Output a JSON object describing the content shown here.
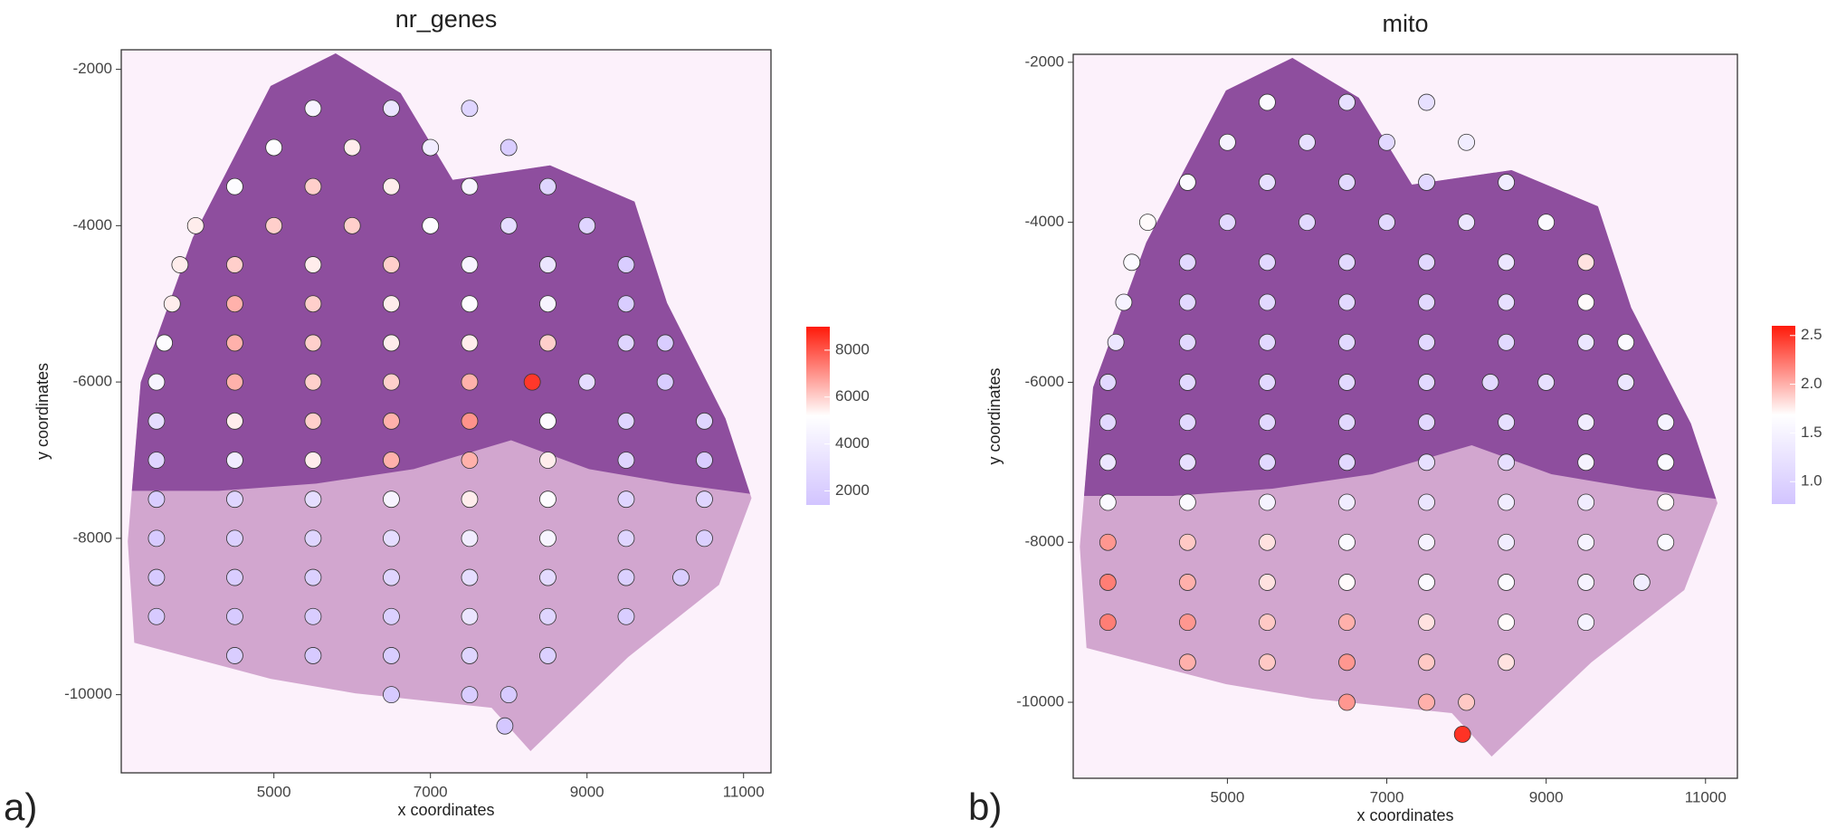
{
  "chart_data": [
    {
      "type": "scatter",
      "title": "nr_genes",
      "xlabel": "x coordinates",
      "ylabel": "y coordinates",
      "panel_label": "a)",
      "xlim": [
        3050,
        11350
      ],
      "ylim": [
        -11000,
        -1750
      ],
      "xticks": [
        5000,
        7000,
        9000,
        11000
      ],
      "yticks": [
        -10000,
        -8000,
        -6000,
        -4000,
        -2000
      ],
      "x": [
        5500,
        6500,
        7500,
        5000,
        6000,
        7000,
        8000,
        4500,
        5500,
        6500,
        7500,
        8500,
        4000,
        5000,
        6000,
        7000,
        8000,
        9000,
        3800,
        4500,
        5500,
        6500,
        7500,
        8500,
        9500,
        3700,
        4500,
        5500,
        6500,
        7500,
        8500,
        9500,
        3600,
        4500,
        5500,
        6500,
        7500,
        8500,
        9500,
        10000,
        3500,
        4500,
        5500,
        6500,
        7500,
        8300,
        9000,
        10000,
        3500,
        4500,
        5500,
        6500,
        7500,
        8500,
        9500,
        10500,
        3500,
        4500,
        5500,
        6500,
        7500,
        8500,
        9500,
        10500,
        3500,
        4500,
        5500,
        6500,
        7500,
        8500,
        9500,
        10500,
        3500,
        4500,
        5500,
        6500,
        7500,
        8500,
        9500,
        10500,
        3500,
        4500,
        5500,
        6500,
        7500,
        8500,
        9500,
        10200,
        3500,
        4500,
        5500,
        6500,
        7500,
        8500,
        9500,
        4500,
        5500,
        6500,
        7500,
        8500,
        6500,
        7500,
        8000,
        7950
      ],
      "y": [
        -2500,
        -2500,
        -2500,
        -3000,
        -3000,
        -3000,
        -3000,
        -3500,
        -3500,
        -3500,
        -3500,
        -3500,
        -4000,
        -4000,
        -4000,
        -4000,
        -4000,
        -4000,
        -4500,
        -4500,
        -4500,
        -4500,
        -4500,
        -4500,
        -4500,
        -5000,
        -5000,
        -5000,
        -5000,
        -5000,
        -5000,
        -5000,
        -5500,
        -5500,
        -5500,
        -5500,
        -5500,
        -5500,
        -5500,
        -5500,
        -6000,
        -6000,
        -6000,
        -6000,
        -6000,
        -6000,
        -6000,
        -6000,
        -6500,
        -6500,
        -6500,
        -6500,
        -6500,
        -6500,
        -6500,
        -6500,
        -7000,
        -7000,
        -7000,
        -7000,
        -7000,
        -7000,
        -7000,
        -7000,
        -7500,
        -7500,
        -7500,
        -7500,
        -7500,
        -7500,
        -7500,
        -7500,
        -8000,
        -8000,
        -8000,
        -8000,
        -8000,
        -8000,
        -8000,
        -8000,
        -8500,
        -8500,
        -8500,
        -8500,
        -8500,
        -8500,
        -8500,
        -8500,
        -9000,
        -9000,
        -9000,
        -9000,
        -9000,
        -9000,
        -9000,
        -9500,
        -9500,
        -9500,
        -9500,
        -9500,
        -10000,
        -10000,
        -10000,
        -10400
      ],
      "values": [
        4500,
        3500,
        2500,
        5000,
        5500,
        4000,
        2000,
        5000,
        6000,
        5500,
        4500,
        2500,
        5500,
        6000,
        6000,
        5000,
        3000,
        2500,
        5500,
        6000,
        5500,
        6000,
        4500,
        3500,
        2000,
        5500,
        6500,
        6000,
        5500,
        5000,
        4500,
        2000,
        5000,
        6500,
        6000,
        5500,
        5500,
        6000,
        2500,
        2000,
        4500,
        6500,
        6000,
        6000,
        6500,
        8500,
        3000,
        2000,
        3000,
        5500,
        6000,
        6500,
        7000,
        5000,
        2500,
        2500,
        2500,
        4000,
        5500,
        6500,
        6500,
        5500,
        2500,
        2000,
        2000,
        2500,
        3000,
        4500,
        5500,
        5000,
        2500,
        2500,
        1800,
        2200,
        2500,
        3000,
        4000,
        4500,
        2500,
        2200,
        1800,
        2000,
        2200,
        2500,
        3000,
        2800,
        2200,
        2000,
        1800,
        1800,
        2000,
        2200,
        3500,
        2500,
        2000,
        2000,
        1800,
        2000,
        2500,
        2200,
        1800,
        2000,
        1800,
        1600
      ],
      "colorbar": {
        "lim": [
          1400,
          9000
        ],
        "ticks": [
          2000,
          4000,
          6000,
          8000
        ],
        "colors": [
          "#d2c4ff",
          "#ffffff",
          "#ff1a0a"
        ]
      }
    },
    {
      "type": "scatter",
      "title": "mito",
      "xlabel": "x coordinates",
      "ylabel": "y coordinates",
      "panel_label": "b)",
      "xlim": [
        3065,
        11400
      ],
      "ylim": [
        -10950,
        -1900
      ],
      "xticks": [
        5000,
        7000,
        9000,
        11000
      ],
      "yticks": [
        -10000,
        -8000,
        -6000,
        -4000,
        -2000
      ],
      "x": [
        5500,
        6500,
        7500,
        5000,
        6000,
        7000,
        8000,
        4500,
        5500,
        6500,
        7500,
        8500,
        4000,
        5000,
        6000,
        7000,
        8000,
        9000,
        3800,
        4500,
        5500,
        6500,
        7500,
        8500,
        9500,
        3700,
        4500,
        5500,
        6500,
        7500,
        8500,
        9500,
        3600,
        4500,
        5500,
        6500,
        7500,
        8500,
        9500,
        10000,
        3500,
        4500,
        5500,
        6500,
        7500,
        8300,
        9000,
        10000,
        3500,
        4500,
        5500,
        6500,
        7500,
        8500,
        9500,
        10500,
        3500,
        4500,
        5500,
        6500,
        7500,
        8500,
        9500,
        10500,
        3500,
        4500,
        5500,
        6500,
        7500,
        8500,
        9500,
        10500,
        3500,
        4500,
        5500,
        6500,
        7500,
        8500,
        9500,
        10500,
        3500,
        4500,
        5500,
        6500,
        7500,
        8500,
        9500,
        10200,
        3500,
        4500,
        5500,
        6500,
        7500,
        8500,
        9500,
        4500,
        5500,
        6500,
        7500,
        8500,
        6500,
        7500,
        8000,
        7950
      ],
      "y": [
        -2500,
        -2500,
        -2500,
        -3000,
        -3000,
        -3000,
        -3000,
        -3500,
        -3500,
        -3500,
        -3500,
        -3500,
        -4000,
        -4000,
        -4000,
        -4000,
        -4000,
        -4000,
        -4500,
        -4500,
        -4500,
        -4500,
        -4500,
        -4500,
        -4500,
        -5000,
        -5000,
        -5000,
        -5000,
        -5000,
        -5000,
        -5000,
        -5500,
        -5500,
        -5500,
        -5500,
        -5500,
        -5500,
        -5500,
        -5500,
        -6000,
        -6000,
        -6000,
        -6000,
        -6000,
        -6000,
        -6000,
        -6000,
        -6500,
        -6500,
        -6500,
        -6500,
        -6500,
        -6500,
        -6500,
        -6500,
        -7000,
        -7000,
        -7000,
        -7000,
        -7000,
        -7000,
        -7000,
        -7000,
        -7500,
        -7500,
        -7500,
        -7500,
        -7500,
        -7500,
        -7500,
        -7500,
        -8000,
        -8000,
        -8000,
        -8000,
        -8000,
        -8000,
        -8000,
        -8000,
        -8500,
        -8500,
        -8500,
        -8500,
        -8500,
        -8500,
        -8500,
        -8500,
        -9000,
        -9000,
        -9000,
        -9000,
        -9000,
        -9000,
        -9000,
        -9500,
        -9500,
        -9500,
        -9500,
        -9500,
        -10000,
        -10000,
        -10000,
        -10400
      ],
      "values": [
        1.6,
        1.2,
        1.2,
        1.5,
        1.2,
        1.1,
        1.4,
        1.6,
        1.2,
        1.1,
        1.1,
        1.4,
        1.7,
        1.1,
        1.1,
        1.1,
        1.3,
        1.6,
        1.6,
        1.1,
        1.1,
        1.1,
        1.1,
        1.3,
        1.8,
        1.5,
        1.1,
        1.1,
        1.1,
        1.1,
        1.2,
        1.7,
        1.3,
        1.1,
        1.1,
        1.1,
        1.1,
        1.1,
        1.3,
        1.6,
        1.1,
        1.1,
        1.1,
        1.1,
        1.1,
        1.1,
        1.2,
        1.3,
        1.1,
        1.1,
        1.1,
        1.1,
        1.1,
        1.2,
        1.4,
        1.5,
        1.3,
        1.2,
        1.1,
        1.1,
        1.2,
        1.2,
        1.5,
        1.6,
        1.6,
        1.6,
        1.5,
        1.4,
        1.3,
        1.4,
        1.4,
        1.7,
        2.1,
        1.9,
        1.8,
        1.6,
        1.5,
        1.4,
        1.5,
        1.6,
        2.2,
        2.0,
        1.8,
        1.7,
        1.6,
        1.6,
        1.5,
        1.4,
        2.2,
        2.1,
        1.9,
        2.0,
        1.8,
        1.7,
        1.5,
        2.0,
        1.9,
        2.1,
        1.9,
        1.8,
        2.1,
        2.0,
        1.9,
        2.5
      ],
      "colorbar": {
        "lim": [
          0.77,
          2.6
        ],
        "ticks": [
          {
            "value": 1,
            "label": "1.0"
          },
          1.5,
          {
            "value": 2,
            "label": "2.0"
          },
          2.5
        ],
        "colors": [
          "#d2c4ff",
          "#ffffff",
          "#ff1a0a"
        ]
      }
    }
  ]
}
